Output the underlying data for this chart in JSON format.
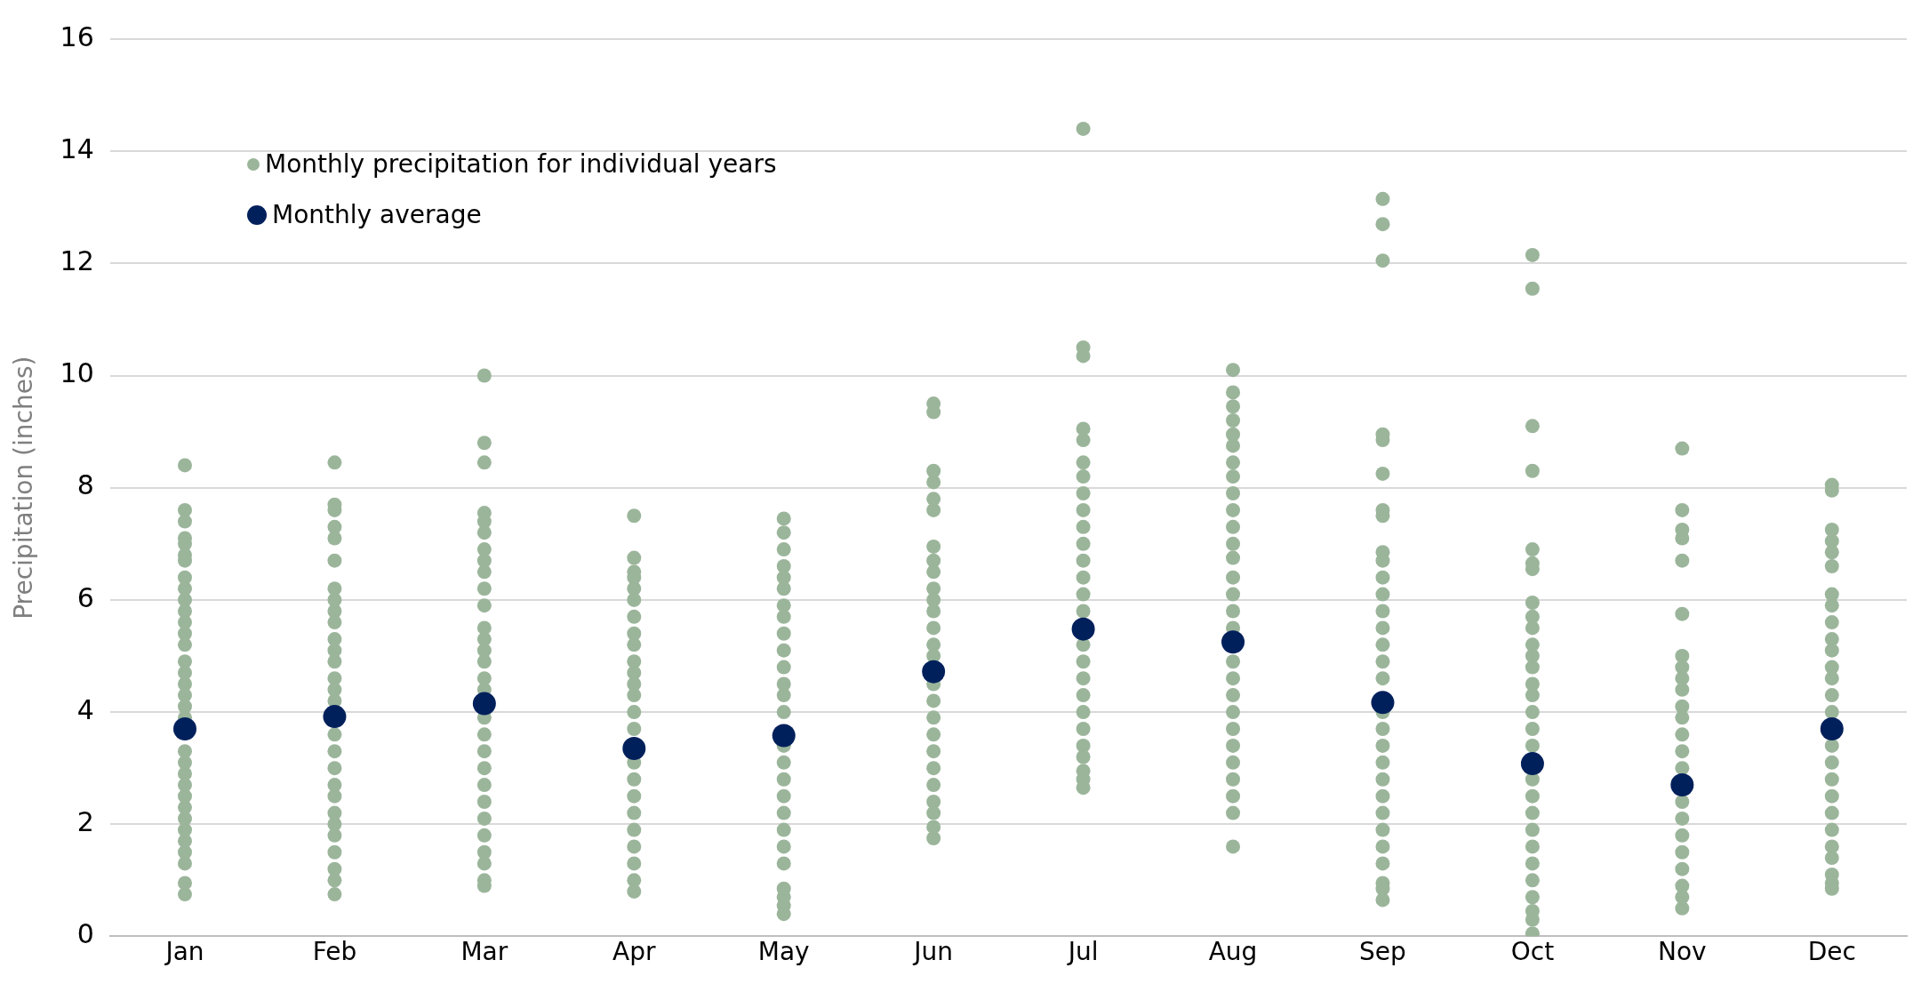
{
  "chart_data": {
    "type": "scatter",
    "ylabel": "Precipitation (inches)",
    "categories": [
      "Jan",
      "Feb",
      "Mar",
      "Apr",
      "May",
      "Jun",
      "Jul",
      "Aug",
      "Sep",
      "Oct",
      "Nov",
      "Dec"
    ],
    "ylim": [
      0,
      16
    ],
    "yticks": [
      0,
      2,
      4,
      6,
      8,
      10,
      12,
      14,
      16
    ],
    "grid": "y",
    "legend": "top left",
    "marker": "circle",
    "series": [
      {
        "name": "Monthly precipitation for individual years",
        "color": "#9bb59b",
        "x": [
          "Jan",
          "Jan",
          "Jan",
          "Jan",
          "Jan",
          "Jan",
          "Jan",
          "Jan",
          "Jan",
          "Jan",
          "Jan",
          "Jan",
          "Jan",
          "Jan",
          "Jan",
          "Jan",
          "Jan",
          "Jan",
          "Jan",
          "Jan",
          "Jan",
          "Jan",
          "Jan",
          "Jan",
          "Jan",
          "Jan",
          "Jan",
          "Jan",
          "Jan",
          "Jan",
          "Jan",
          "Jan",
          "Jan",
          "Jan",
          "Feb",
          "Feb",
          "Feb",
          "Feb",
          "Feb",
          "Feb",
          "Feb",
          "Feb",
          "Feb",
          "Feb",
          "Feb",
          "Feb",
          "Feb",
          "Feb",
          "Feb",
          "Feb",
          "Feb",
          "Feb",
          "Feb",
          "Feb",
          "Feb",
          "Feb",
          "Feb",
          "Feb",
          "Feb",
          "Feb",
          "Feb",
          "Feb",
          "Feb",
          "Mar",
          "Mar",
          "Mar",
          "Mar",
          "Mar",
          "Mar",
          "Mar",
          "Mar",
          "Mar",
          "Mar",
          "Mar",
          "Mar",
          "Mar",
          "Mar",
          "Mar",
          "Mar",
          "Mar",
          "Mar",
          "Mar",
          "Mar",
          "Mar",
          "Mar",
          "Mar",
          "Mar",
          "Mar",
          "Mar",
          "Mar",
          "Mar",
          "Mar",
          "Apr",
          "Apr",
          "Apr",
          "Apr",
          "Apr",
          "Apr",
          "Apr",
          "Apr",
          "Apr",
          "Apr",
          "Apr",
          "Apr",
          "Apr",
          "Apr",
          "Apr",
          "Apr",
          "Apr",
          "Apr",
          "Apr",
          "Apr",
          "Apr",
          "Apr",
          "Apr",
          "Apr",
          "Apr",
          "May",
          "May",
          "May",
          "May",
          "May",
          "May",
          "May",
          "May",
          "May",
          "May",
          "May",
          "May",
          "May",
          "May",
          "May",
          "May",
          "May",
          "May",
          "May",
          "May",
          "May",
          "May",
          "May",
          "May",
          "May",
          "May",
          "May",
          "Jun",
          "Jun",
          "Jun",
          "Jun",
          "Jun",
          "Jun",
          "Jun",
          "Jun",
          "Jun",
          "Jun",
          "Jun",
          "Jun",
          "Jun",
          "Jun",
          "Jun",
          "Jun",
          "Jun",
          "Jun",
          "Jun",
          "Jun",
          "Jun",
          "Jun",
          "Jun",
          "Jun",
          "Jun",
          "Jun",
          "Jun",
          "Jul",
          "Jul",
          "Jul",
          "Jul",
          "Jul",
          "Jul",
          "Jul",
          "Jul",
          "Jul",
          "Jul",
          "Jul",
          "Jul",
          "Jul",
          "Jul",
          "Jul",
          "Jul",
          "Jul",
          "Jul",
          "Jul",
          "Jul",
          "Jul",
          "Jul",
          "Jul",
          "Jul",
          "Jul",
          "Jul",
          "Jul",
          "Aug",
          "Aug",
          "Aug",
          "Aug",
          "Aug",
          "Aug",
          "Aug",
          "Aug",
          "Aug",
          "Aug",
          "Aug",
          "Aug",
          "Aug",
          "Aug",
          "Aug",
          "Aug",
          "Aug",
          "Aug",
          "Aug",
          "Aug",
          "Aug",
          "Aug",
          "Aug",
          "Aug",
          "Aug",
          "Aug",
          "Aug",
          "Aug",
          "Aug",
          "Sep",
          "Sep",
          "Sep",
          "Sep",
          "Sep",
          "Sep",
          "Sep",
          "Sep",
          "Sep",
          "Sep",
          "Sep",
          "Sep",
          "Sep",
          "Sep",
          "Sep",
          "Sep",
          "Sep",
          "Sep",
          "Sep",
          "Sep",
          "Sep",
          "Sep",
          "Sep",
          "Sep",
          "Sep",
          "Sep",
          "Sep",
          "Sep",
          "Sep",
          "Sep",
          "Sep",
          "Oct",
          "Oct",
          "Oct",
          "Oct",
          "Oct",
          "Oct",
          "Oct",
          "Oct",
          "Oct",
          "Oct",
          "Oct",
          "Oct",
          "Oct",
          "Oct",
          "Oct",
          "Oct",
          "Oct",
          "Oct",
          "Oct",
          "Oct",
          "Oct",
          "Oct",
          "Oct",
          "Oct",
          "Oct",
          "Oct",
          "Oct",
          "Oct",
          "Oct",
          "Oct",
          "Nov",
          "Nov",
          "Nov",
          "Nov",
          "Nov",
          "Nov",
          "Nov",
          "Nov",
          "Nov",
          "Nov",
          "Nov",
          "Nov",
          "Nov",
          "Nov",
          "Nov",
          "Nov",
          "Nov",
          "Nov",
          "Nov",
          "Nov",
          "Nov",
          "Nov",
          "Nov",
          "Nov",
          "Dec",
          "Dec",
          "Dec",
          "Dec",
          "Dec",
          "Dec",
          "Dec",
          "Dec",
          "Dec",
          "Dec",
          "Dec",
          "Dec",
          "Dec",
          "Dec",
          "Dec",
          "Dec",
          "Dec",
          "Dec",
          "Dec",
          "Dec",
          "Dec",
          "Dec",
          "Dec",
          "Dec",
          "Dec",
          "Dec",
          "Dec"
        ],
        "values": [
          8.4,
          7.6,
          7.4,
          7.1,
          7.0,
          6.8,
          6.7,
          6.4,
          6.2,
          6.0,
          5.8,
          5.6,
          5.4,
          5.2,
          4.9,
          4.7,
          4.5,
          4.3,
          4.1,
          3.9,
          null,
          3.3,
          3.1,
          2.9,
          2.7,
          2.5,
          2.3,
          2.1,
          1.9,
          1.7,
          1.5,
          1.3,
          0.95,
          0.75,
          8.45,
          7.7,
          7.6,
          7.3,
          7.1,
          6.7,
          6.2,
          6.0,
          5.8,
          5.6,
          5.3,
          5.1,
          4.9,
          4.6,
          4.4,
          4.2,
          null,
          3.6,
          3.3,
          3.0,
          2.7,
          2.5,
          2.2,
          2.0,
          1.8,
          1.5,
          1.2,
          1.0,
          0.75,
          10.0,
          8.8,
          8.45,
          7.55,
          7.4,
          7.2,
          6.9,
          6.7,
          6.5,
          6.2,
          5.9,
          5.5,
          5.3,
          5.1,
          4.9,
          4.6,
          4.4,
          3.9,
          3.6,
          3.3,
          3.0,
          2.7,
          2.4,
          2.1,
          1.8,
          1.5,
          1.3,
          1.0,
          0.9,
          7.5,
          6.75,
          6.5,
          6.4,
          6.2,
          6.0,
          5.7,
          5.4,
          5.2,
          4.9,
          4.7,
          4.5,
          4.3,
          4.0,
          3.7,
          null,
          3.1,
          2.8,
          2.5,
          2.2,
          1.9,
          1.6,
          1.3,
          1.0,
          0.8,
          7.45,
          7.2,
          6.9,
          6.6,
          6.4,
          6.2,
          5.9,
          5.7,
          5.4,
          5.1,
          4.8,
          4.5,
          4.3,
          4.0,
          null,
          3.4,
          3.1,
          2.8,
          2.5,
          2.2,
          1.9,
          1.6,
          1.3,
          0.85,
          0.7,
          0.55,
          0.4,
          9.5,
          9.35,
          8.3,
          8.1,
          7.8,
          7.6,
          6.95,
          6.7,
          6.5,
          6.2,
          6.0,
          5.8,
          5.5,
          5.2,
          5.0,
          null,
          4.5,
          4.2,
          3.9,
          3.6,
          3.3,
          3.0,
          2.7,
          2.4,
          2.2,
          1.95,
          1.75,
          14.4,
          10.5,
          10.35,
          9.05,
          8.85,
          8.45,
          8.2,
          7.9,
          7.6,
          7.3,
          7.0,
          6.7,
          6.4,
          6.1,
          5.8,
          null,
          5.2,
          4.9,
          4.6,
          4.3,
          4.0,
          3.7,
          3.4,
          3.2,
          2.95,
          2.8,
          2.65,
          10.1,
          9.7,
          9.45,
          9.2,
          8.95,
          8.75,
          8.45,
          8.2,
          7.9,
          7.6,
          7.3,
          7.0,
          6.75,
          6.4,
          6.1,
          5.8,
          5.5,
          null,
          4.9,
          4.6,
          4.3,
          4.0,
          3.7,
          3.4,
          3.1,
          2.8,
          2.5,
          2.2,
          1.6,
          13.15,
          12.7,
          12.05,
          8.95,
          8.85,
          8.25,
          7.6,
          7.5,
          6.85,
          6.7,
          6.4,
          6.1,
          5.8,
          5.5,
          5.2,
          4.9,
          4.6,
          null,
          4.0,
          3.7,
          3.4,
          3.1,
          2.8,
          2.5,
          2.2,
          1.9,
          1.6,
          1.3,
          0.95,
          0.85,
          0.65,
          12.15,
          11.55,
          9.1,
          8.3,
          6.9,
          6.65,
          6.55,
          5.95,
          5.7,
          5.5,
          5.2,
          5.0,
          4.8,
          4.5,
          4.3,
          4.0,
          3.7,
          3.4,
          null,
          2.8,
          2.5,
          2.2,
          1.9,
          1.6,
          1.3,
          1.0,
          0.7,
          0.45,
          0.3,
          0.05,
          8.7,
          7.6,
          7.25,
          7.1,
          6.7,
          5.75,
          5.0,
          4.8,
          4.6,
          4.4,
          4.1,
          3.9,
          3.6,
          3.3,
          3.0,
          null,
          2.4,
          2.1,
          1.8,
          1.5,
          1.2,
          0.9,
          0.7,
          0.5,
          8.05,
          7.95,
          7.25,
          7.05,
          6.85,
          6.6,
          6.1,
          5.9,
          5.6,
          5.3,
          5.1,
          4.8,
          4.6,
          4.3,
          4.0,
          null,
          3.4,
          3.1,
          2.8,
          2.5,
          2.2,
          1.9,
          1.6,
          1.4,
          1.1,
          0.95,
          0.85
        ]
      },
      {
        "name": "Monthly average",
        "color": "#00205b",
        "values": [
          3.7,
          3.92,
          4.15,
          3.35,
          3.58,
          4.72,
          5.48,
          5.25,
          4.17,
          3.08,
          2.7,
          3.7
        ]
      }
    ]
  }
}
